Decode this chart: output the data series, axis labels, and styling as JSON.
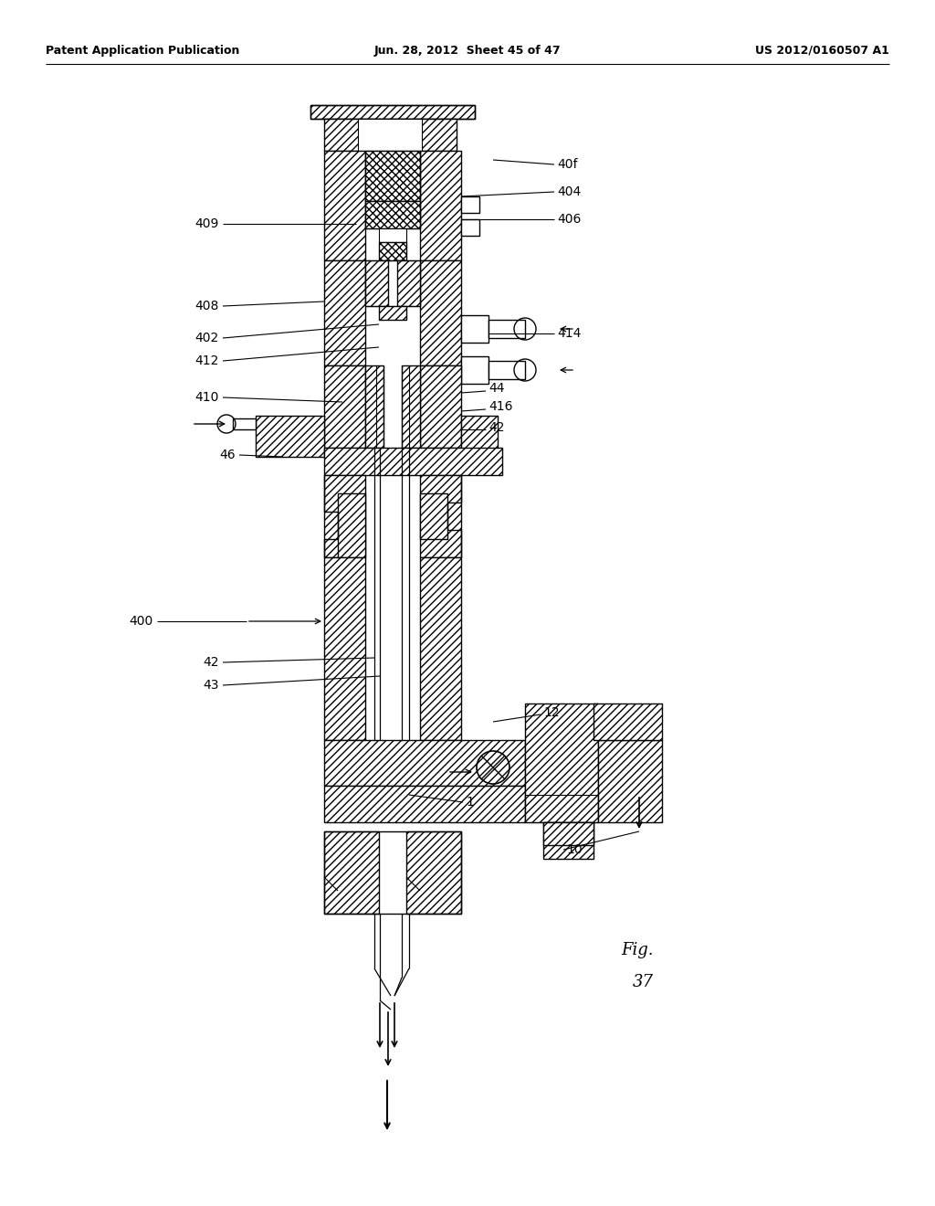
{
  "background_color": "#ffffff",
  "header_left": "Patent Application Publication",
  "header_mid": "Jun. 28, 2012  Sheet 45 of 47",
  "header_right": "US 2012/0160507 A1"
}
